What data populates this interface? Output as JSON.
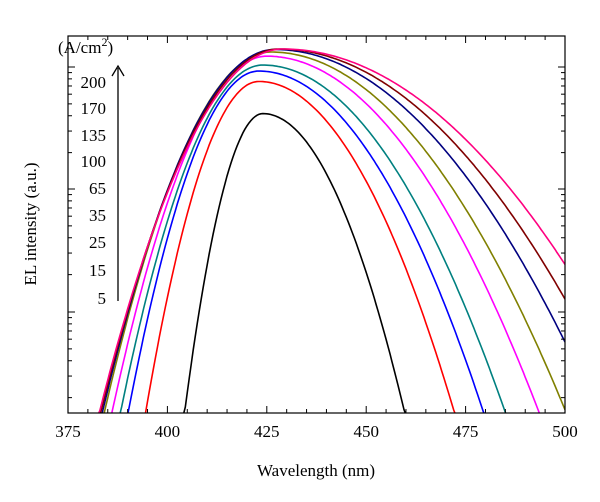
{
  "chart_data": {
    "type": "line",
    "xlabel": "Wavelength (nm)",
    "ylabel": "EL intensity (a.u.)",
    "xlim": [
      375,
      500
    ],
    "xticks": [
      "375",
      "400",
      "425",
      "450",
      "475",
      "500"
    ],
    "yscale": "log",
    "grid": false,
    "legend": {
      "title": "(A/cm²)",
      "entries": [
        "200",
        "170",
        "135",
        "100",
        "65",
        "35",
        "25",
        "15",
        "5"
      ],
      "arrow": "up",
      "placement": "top-left"
    },
    "series": [
      {
        "label": "5",
        "color": "#000000",
        "peak_nm": 424,
        "peak": 0.52,
        "rise_sigma": 8.0,
        "fall_sigma": 14.5
      },
      {
        "label": "15",
        "color": "#ff0000",
        "peak_nm": 423,
        "peak": 0.72,
        "rise_sigma": 11.0,
        "fall_sigma": 19.0
      },
      {
        "label": "25",
        "color": "#0000ff",
        "peak_nm": 423,
        "peak": 0.8,
        "rise_sigma": 12.5,
        "fall_sigma": 21.5
      },
      {
        "label": "35",
        "color": "#008080",
        "peak_nm": 424,
        "peak": 0.85,
        "rise_sigma": 13.5,
        "fall_sigma": 23.0
      },
      {
        "label": "65",
        "color": "#ff00ff",
        "peak_nm": 425,
        "peak": 0.93,
        "rise_sigma": 14.5,
        "fall_sigma": 25.5
      },
      {
        "label": "100",
        "color": "#808000",
        "peak_nm": 426,
        "peak": 0.97,
        "rise_sigma": 15.5,
        "fall_sigma": 27.5
      },
      {
        "label": "135",
        "color": "#000080",
        "peak_nm": 427,
        "peak": 0.995,
        "rise_sigma": 16.0,
        "fall_sigma": 30.0
      },
      {
        "label": "170",
        "color": "#800000",
        "peak_nm": 428,
        "peak": 1.0,
        "rise_sigma": 16.5,
        "fall_sigma": 32.0
      },
      {
        "label": "200",
        "color": "#ff0080",
        "peak_nm": 429,
        "peak": 1.0,
        "rise_sigma": 17.0,
        "fall_sigma": 34.0
      }
    ]
  }
}
